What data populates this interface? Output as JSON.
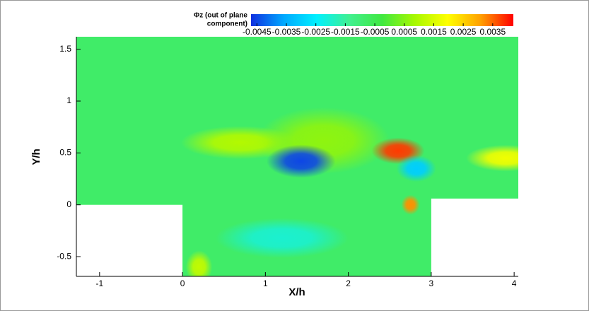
{
  "chart_data": {
    "type": "contour",
    "xlabel": "X/h",
    "ylabel": "Y/h",
    "xlim": [
      -1.28,
      4.05
    ],
    "ylim": [
      -0.69,
      1.62
    ],
    "xticks": [
      -1,
      0,
      1,
      2,
      3,
      4
    ],
    "yticks": [
      -0.5,
      0,
      0.5,
      1,
      1.5
    ],
    "colorbar_title": [
      "Φz (out of plane",
      "component)"
    ],
    "clim": [
      -0.0047,
      0.0042
    ],
    "colorbar_ticks": [
      -0.0045,
      -0.0035,
      -0.0025,
      -0.0015,
      -0.0005,
      0.0005,
      0.0015,
      0.0025,
      0.0035
    ],
    "colormap": [
      "#1030e0",
      "#00a8ff",
      "#00f0ff",
      "#40f090",
      "#40e840",
      "#a8f800",
      "#ffff00",
      "#ffa000",
      "#ff0000"
    ],
    "background_value": -0.0008,
    "walls": [
      {
        "x": [
          -1.28,
          0
        ],
        "y": [
          -0.69,
          0
        ]
      },
      {
        "x": [
          3,
          4.05
        ],
        "y": [
          -0.69,
          0.06
        ]
      }
    ],
    "blobs": [
      {
        "x": 0.7,
        "y": 0.6,
        "rx": 0.45,
        "ry": 0.1,
        "value": 0.001
      },
      {
        "x": 1.7,
        "y": 0.62,
        "rx": 0.5,
        "ry": 0.2,
        "value": 0.0006
      },
      {
        "x": 1.2,
        "y": -0.32,
        "rx": 0.5,
        "ry": 0.12,
        "value": -0.002
      },
      {
        "x": 1.43,
        "y": 0.42,
        "rx": 0.26,
        "ry": 0.1,
        "value": -0.0045
      },
      {
        "x": 2.6,
        "y": 0.52,
        "rx": 0.2,
        "ry": 0.08,
        "value": 0.0038
      },
      {
        "x": 2.82,
        "y": 0.35,
        "rx": 0.15,
        "ry": 0.08,
        "value": -0.003
      },
      {
        "x": 2.75,
        "y": 0.0,
        "rx": 0.07,
        "ry": 0.06,
        "value": 0.0032
      },
      {
        "x": 3.9,
        "y": 0.45,
        "rx": 0.3,
        "ry": 0.08,
        "value": 0.0018
      },
      {
        "x": 0.2,
        "y": -0.6,
        "rx": 0.1,
        "ry": 0.1,
        "value": 0.0012
      }
    ]
  }
}
